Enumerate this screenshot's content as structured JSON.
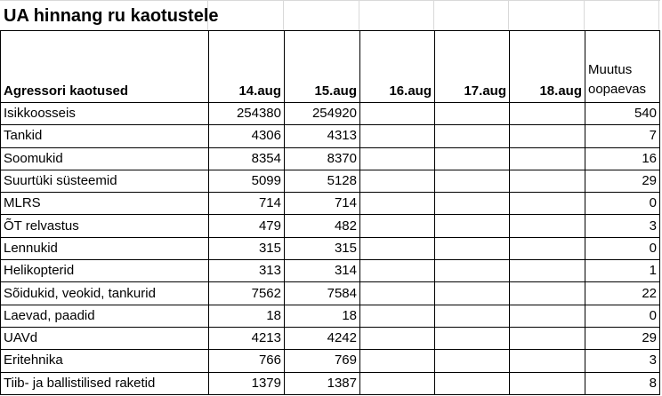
{
  "title": "UA hinnang ru kaotustele",
  "table": {
    "headers": [
      "Agressori kaotused",
      "14.aug",
      "15.aug",
      "16.aug",
      "17.aug",
      "18.aug",
      "Muutus oopaevas"
    ],
    "rows": [
      [
        "Isikkoosseis",
        254380,
        254920,
        null,
        null,
        null,
        540
      ],
      [
        "Tankid",
        4306,
        4313,
        null,
        null,
        null,
        7
      ],
      [
        "Soomukid",
        8354,
        8370,
        null,
        null,
        null,
        16
      ],
      [
        "Suurtüki süsteemid",
        5099,
        5128,
        null,
        null,
        null,
        29
      ],
      [
        "MLRS",
        714,
        714,
        null,
        null,
        null,
        0
      ],
      [
        "ÕT relvastus",
        479,
        482,
        null,
        null,
        null,
        3
      ],
      [
        "Lennukid",
        315,
        315,
        null,
        null,
        null,
        0
      ],
      [
        "Helikopterid",
        313,
        314,
        null,
        null,
        null,
        1
      ],
      [
        "Sõidukid, veokid, tankurid",
        7562,
        7584,
        null,
        null,
        null,
        22
      ],
      [
        "Laevad, paadid",
        18,
        18,
        null,
        null,
        null,
        0
      ],
      [
        "UAVd",
        4213,
        4242,
        null,
        null,
        null,
        29
      ],
      [
        "Eritehnika",
        766,
        769,
        null,
        null,
        null,
        3
      ],
      [
        "Tiib- ja ballistilised raketid",
        1379,
        1387,
        null,
        null,
        null,
        8
      ]
    ]
  }
}
